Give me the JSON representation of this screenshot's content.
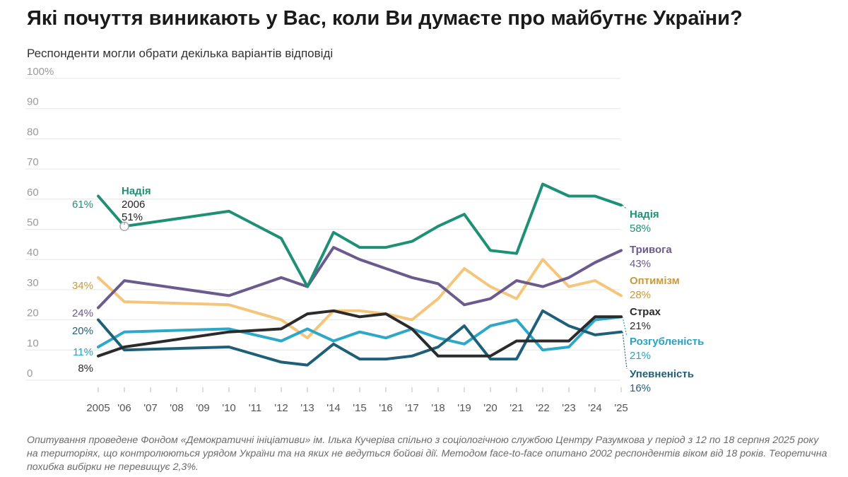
{
  "title": "Які почуття виникають у Вас, коли Ви думаєте про майбутнє України?",
  "subtitle": "Респонденти могли обрати декілька варіантів відповіді",
  "footnote": "Опитування проведене Фондом «Демократичні ініціативи» ім. Ілька Кучеріва спільно з соціологічною службою Центру Разумкова у період з 12 по 18 серпня 2025 року на територіях, що контролюються урядом України та на яких не ведуться бойові дії. Методом face-to-face опитано 2002 респондентів віком від 18 років. Теоретична похибка вибірки не перевищує 2,3%.",
  "colors": {
    "Надія": "#1e9075",
    "Тривога": "#6b5a8e",
    "Оптимізм": "#f5c57a",
    "Страх": "#2b2b2b",
    "Розгубленість": "#2ea8c8",
    "Упевненість": "#1f5f78",
    "grid": "#e6e6e6",
    "tick": "#9a9a9a"
  },
  "label_colors": {
    "Надія": "#1e9075",
    "Тривога": "#6b5a8e",
    "Оптимізм": "#c89a3a",
    "Страх": "#2b2b2b",
    "Розгубленість": "#2aa2c2",
    "Упевненість": "#1f5f78"
  },
  "chart_data": {
    "type": "line",
    "title": "Які почуття виникають у Вас, коли Ви думаєте про майбутнє України?",
    "subtitle": "Респонденти могли обрати декілька варіантів відповіді",
    "xlabel": "",
    "ylabel": "",
    "ylim": [
      0,
      100
    ],
    "y_ticks": [
      "0",
      "10",
      "20",
      "30",
      "40",
      "50",
      "60",
      "70",
      "80",
      "90",
      "100%"
    ],
    "y_tick_values": [
      0,
      10,
      20,
      30,
      40,
      50,
      60,
      70,
      80,
      90,
      100
    ],
    "grid": true,
    "x": [
      2005,
      2006,
      2010,
      2012,
      2013,
      2014,
      2015,
      2016,
      2017,
      2018,
      2019,
      2020,
      2021,
      2022,
      2023,
      2024,
      2025
    ],
    "x_ticks": [
      2005,
      2006,
      2007,
      2008,
      2009,
      2010,
      2011,
      2012,
      2013,
      2014,
      2015,
      2016,
      2017,
      2018,
      2019,
      2020,
      2021,
      2022,
      2023,
      2024,
      2025
    ],
    "x_tick_labels": [
      "2005",
      "'06",
      "'07",
      "'08",
      "'09",
      "'10",
      "'11",
      "'12",
      "'13",
      "'14",
      "'15",
      "'16",
      "'17",
      "'18",
      "'19",
      "'20",
      "'21",
      "'22",
      "'23",
      "'24",
      "'25"
    ],
    "series": [
      {
        "name": "Надія",
        "values": [
          61,
          51,
          56,
          47,
          31,
          49,
          44,
          44,
          46,
          51,
          55,
          43,
          42,
          65,
          61,
          61,
          58
        ]
      },
      {
        "name": "Тривога",
        "values": [
          24,
          33,
          28,
          34,
          31,
          44,
          40,
          37,
          34,
          32,
          25,
          27,
          33,
          31,
          34,
          39,
          43
        ]
      },
      {
        "name": "Оптимізм",
        "values": [
          34,
          26,
          25,
          20,
          14,
          23,
          23,
          22,
          20,
          27,
          37,
          31,
          27,
          40,
          31,
          33,
          28
        ]
      },
      {
        "name": "Страх",
        "values": [
          8,
          11,
          16,
          17,
          22,
          23,
          21,
          22,
          17,
          8,
          8,
          8,
          13,
          13,
          13,
          21,
          21
        ]
      },
      {
        "name": "Розгубленість",
        "values": [
          11,
          16,
          17,
          13,
          17,
          13,
          16,
          14,
          17,
          14,
          12,
          18,
          20,
          10,
          11,
          20,
          21
        ]
      },
      {
        "name": "Упевненість",
        "values": [
          20,
          10,
          11,
          6,
          5,
          12,
          7,
          7,
          8,
          11,
          18,
          7,
          7,
          23,
          18,
          15,
          16
        ]
      }
    ],
    "start_labels": [
      {
        "series": "Надія",
        "text": "61%"
      },
      {
        "series": "Оптимізм",
        "text": "34%"
      },
      {
        "series": "Тривога",
        "text": "24%"
      },
      {
        "series": "Упевненість",
        "text": "20%"
      },
      {
        "series": "Розгубленість",
        "text": "11%"
      },
      {
        "series": "Страх",
        "text": "8%"
      }
    ],
    "end_labels": [
      {
        "series": "Надія",
        "name": "Надія",
        "value": "58%"
      },
      {
        "series": "Тривога",
        "name": "Тривога",
        "value": "43%"
      },
      {
        "series": "Оптимізм",
        "name": "Оптимізм",
        "value": "28%"
      },
      {
        "series": "Страх",
        "name": "Страх",
        "value": "21%"
      },
      {
        "series": "Розгубленість",
        "name": "Розгубленість",
        "value": "21%"
      },
      {
        "series": "Упевненість",
        "name": "Упевненість",
        "value": "16%"
      }
    ],
    "annotation": {
      "series": "Надія",
      "name": "Надія",
      "year_text": "2006",
      "value_text": "51%",
      "x": 2006,
      "y": 51
    }
  }
}
